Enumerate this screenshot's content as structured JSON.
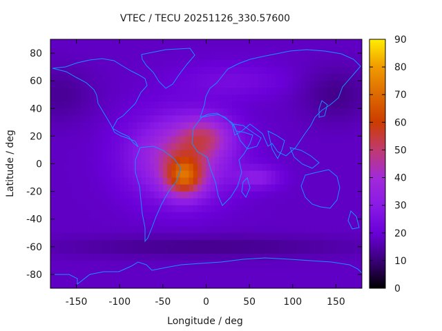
{
  "chart_data": {
    "type": "heatmap",
    "title": "VTEC / TECU 20251126_330.57600",
    "xlabel": "Longitude / deg",
    "ylabel": "Latitude / deg",
    "xlim": [
      -180,
      180
    ],
    "ylim": [
      -90,
      90
    ],
    "x_ticks": [
      -150,
      -100,
      -50,
      0,
      50,
      100,
      150
    ],
    "y_ticks": [
      -80,
      -60,
      -40,
      -20,
      0,
      20,
      40,
      60,
      80
    ],
    "colorbar": {
      "range": [
        0,
        90
      ],
      "ticks": [
        0,
        10,
        20,
        30,
        40,
        50,
        60,
        70,
        80,
        90
      ],
      "colors": [
        "#000000",
        "#3a0078",
        "#6a00d8",
        "#8a1ae6",
        "#a22ad8",
        "#c03a70",
        "#cc3c00",
        "#dd6a00",
        "#f09a00",
        "#ffee00"
      ]
    },
    "peak": {
      "lon": -25,
      "lat": -10,
      "vtec": 85
    },
    "secondary_peak": {
      "lon": 0,
      "lat": 20,
      "vtec": 60
    },
    "background_vtec": 18
  }
}
